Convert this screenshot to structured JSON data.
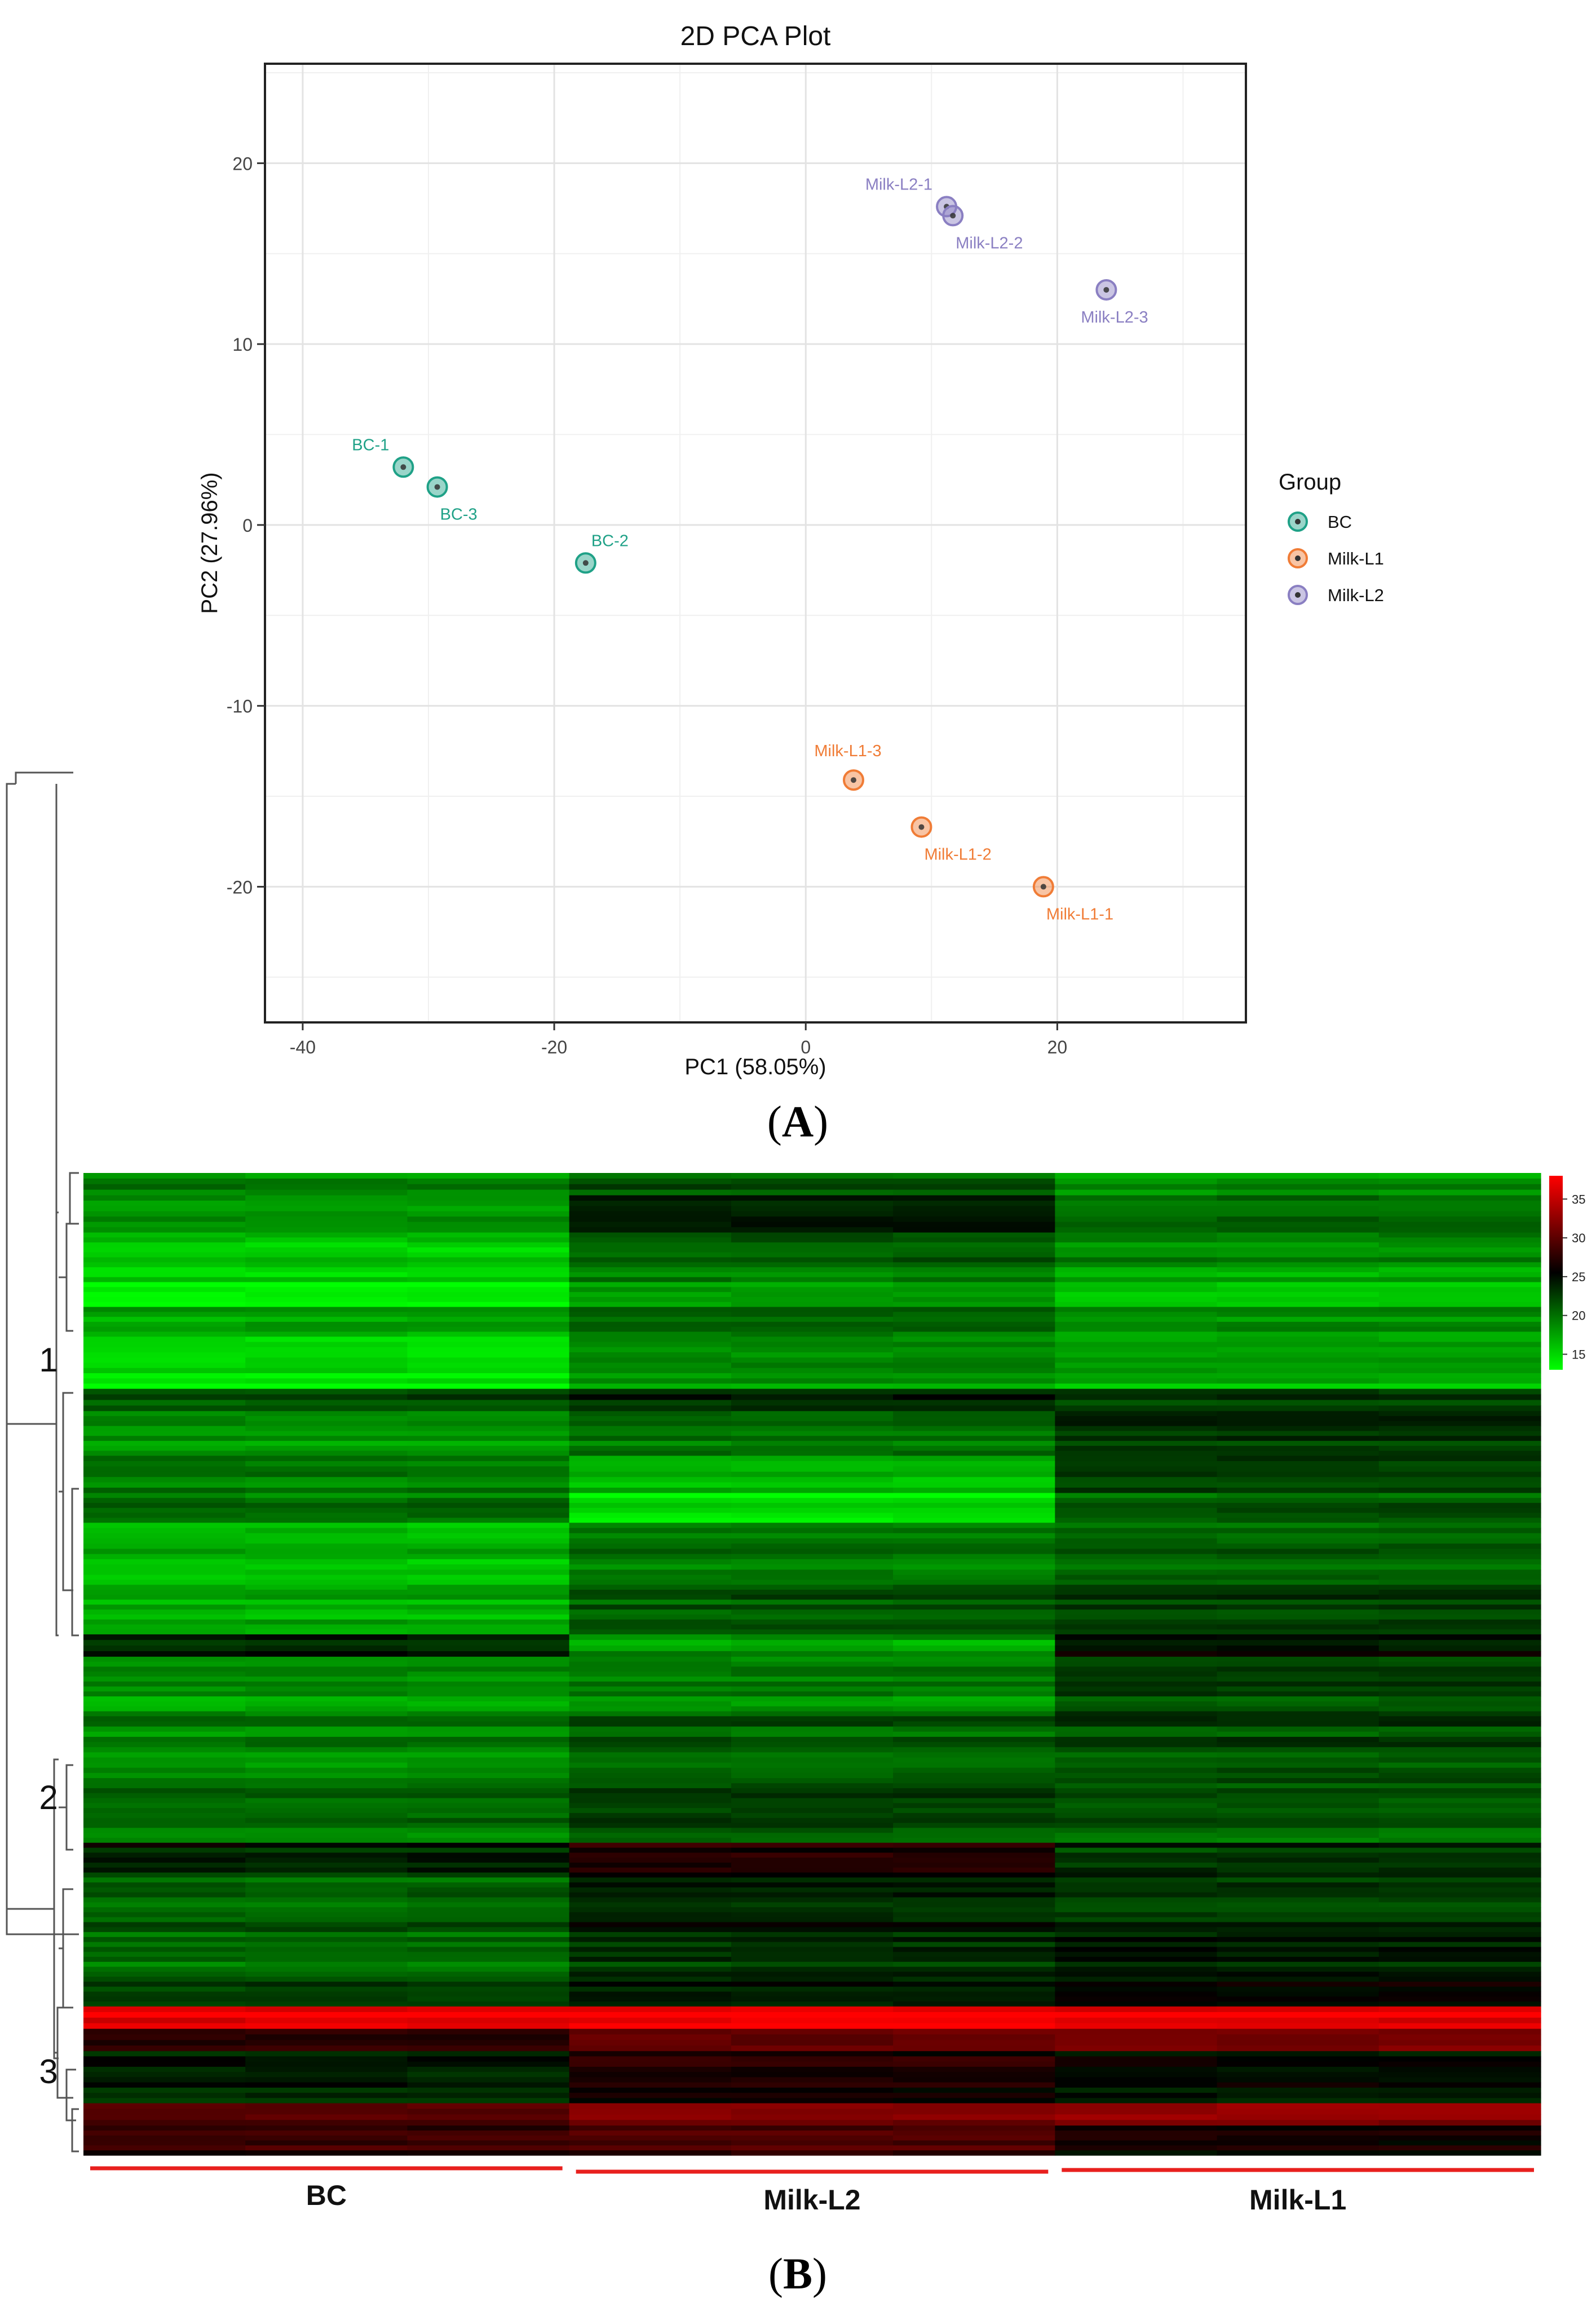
{
  "panel_a": {
    "letter": "A",
    "chart_data": {
      "type": "scatter",
      "title": "2D PCA Plot",
      "xlabel": "PC1 (58.05%)",
      "ylabel": "PC2 (27.96%)",
      "xlim": [
        -43,
        35
      ],
      "ylim": [
        -27.5,
        25.5
      ],
      "xticks": [
        -40,
        -20,
        0,
        20
      ],
      "yticks": [
        -20,
        -10,
        0,
        10,
        20
      ],
      "xtick_labels": [
        "-40",
        "-20",
        "0",
        "20"
      ],
      "ytick_labels": [
        "-20",
        "-10",
        "0",
        "10",
        "20"
      ],
      "grid": true,
      "legend": {
        "title": "Group",
        "position": "right"
      },
      "series": [
        {
          "name": "BC",
          "color": "#1fa187",
          "points": [
            {
              "label": "BC-1",
              "x": -32.0,
              "y": 3.2,
              "anchor": "above-left"
            },
            {
              "label": "BC-3",
              "x": -29.3,
              "y": 2.1,
              "anchor": "below-right"
            },
            {
              "label": "BC-2",
              "x": -17.5,
              "y": -2.1,
              "anchor": "above-right"
            }
          ]
        },
        {
          "name": "Milk-L1",
          "color": "#f07c36",
          "points": [
            {
              "label": "Milk-L1-3",
              "x": 3.8,
              "y": -14.1,
              "anchor": "above"
            },
            {
              "label": "Milk-L1-2",
              "x": 9.2,
              "y": -16.7,
              "anchor": "below-right"
            },
            {
              "label": "Milk-L1-1",
              "x": 18.9,
              "y": -20.0,
              "anchor": "below-right"
            }
          ]
        },
        {
          "name": "Milk-L2",
          "color": "#8a7fc2",
          "points": [
            {
              "label": "Milk-L2-1",
              "x": 11.2,
              "y": 17.6,
              "anchor": "above-left"
            },
            {
              "label": "Milk-L2-2",
              "x": 11.7,
              "y": 17.1,
              "anchor": "below-right"
            },
            {
              "label": "Milk-L2-3",
              "x": 23.9,
              "y": 13.0,
              "anchor": "below-left"
            }
          ]
        }
      ]
    }
  },
  "panel_b": {
    "letter": "B",
    "chart_data": {
      "type": "heatmap",
      "groups": [
        "BC",
        "Milk-L2",
        "Milk-L1"
      ],
      "samples_per_group": 3,
      "cluster_labels": [
        "1",
        "2",
        "3"
      ],
      "colorbar": {
        "min": 13,
        "max": 38,
        "ticks": [
          15,
          20,
          25,
          30,
          35
        ],
        "tick_labels": [
          "35",
          "30",
          "25",
          "20",
          "15"
        ],
        "colors": [
          "#00ff00",
          "#000000",
          "#ff0000"
        ]
      },
      "row_bands": [
        {
          "weight": 3,
          "values": [
            19,
            21,
            18
          ]
        },
        {
          "weight": 5,
          "values": [
            18,
            24,
            20
          ]
        },
        {
          "weight": 4,
          "values": [
            16,
            21,
            19
          ]
        },
        {
          "weight": 6,
          "values": [
            15,
            19,
            17
          ]
        },
        {
          "weight": 4,
          "values": [
            17,
            20,
            18
          ]
        },
        {
          "weight": 7,
          "values": [
            14,
            18,
            17
          ]
        },
        {
          "weight": 3,
          "values": [
            22,
            24,
            23
          ]
        },
        {
          "weight": 6,
          "values": [
            18,
            20,
            23
          ]
        },
        {
          "weight": 5,
          "values": [
            19,
            16,
            22
          ]
        },
        {
          "weight": 4,
          "values": [
            20,
            14,
            21
          ]
        },
        {
          "weight": 7,
          "values": [
            17,
            20,
            21
          ]
        },
        {
          "weight": 8,
          "values": [
            17,
            21,
            22
          ]
        },
        {
          "weight": 3,
          "values": [
            24,
            18,
            25
          ]
        },
        {
          "weight": 8,
          "values": [
            18,
            19,
            22
          ]
        },
        {
          "weight": 9,
          "values": [
            19,
            21,
            22
          ]
        },
        {
          "weight": 8,
          "values": [
            20,
            22,
            21
          ]
        },
        {
          "weight": 4,
          "values": [
            24,
            27,
            23
          ]
        },
        {
          "weight": 8,
          "values": [
            21,
            24,
            23
          ]
        },
        {
          "weight": 6,
          "values": [
            20,
            23,
            24
          ]
        },
        {
          "weight": 4,
          "values": [
            22,
            24,
            25
          ]
        },
        {
          "weight": 3,
          "values": [
            37,
            38,
            37
          ]
        },
        {
          "weight": 3,
          "values": [
            27,
            30,
            31
          ]
        },
        {
          "weight": 7,
          "values": [
            24,
            27,
            25
          ]
        },
        {
          "weight": 3,
          "values": [
            30,
            32,
            33
          ]
        },
        {
          "weight": 4,
          "values": [
            28,
            29,
            26
          ]
        }
      ]
    }
  }
}
